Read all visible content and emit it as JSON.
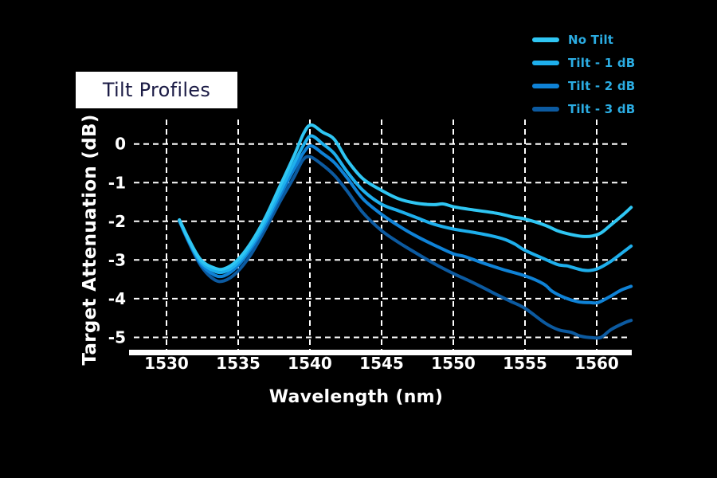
{
  "title_badge": {
    "label": "Tilt Profiles",
    "text_color": "#1b1b45",
    "bg_color": "#ffffff"
  },
  "axes": {
    "x_label": "Wavelength (nm)",
    "y_label": "Target Attenuation (dB)",
    "x_tick_labels": [
      "1530",
      "1535",
      "1540",
      "1545",
      "1550",
      "1555",
      "1560"
    ],
    "y_tick_labels": [
      "0",
      "-1",
      "-2",
      "-3",
      "-4",
      "-5"
    ]
  },
  "colors": {
    "background": "#000000",
    "grid": "#ffffff",
    "axis_bar": "#ffffff",
    "axis_text": "#ffffff",
    "legend_text": "#2bace2"
  },
  "chart_data": {
    "type": "line",
    "title": "Tilt Profiles",
    "xlabel": "Wavelength (nm)",
    "ylabel": "Target Attenuation (dB)",
    "xlim": [
      1527.4,
      1562.4
    ],
    "ylim": [
      -5.35,
      0.65
    ],
    "x_tick_values": [
      1530,
      1535,
      1540,
      1545,
      1550,
      1555,
      1560
    ],
    "y_tick_values": [
      0,
      -1,
      -2,
      -3,
      -4,
      -5
    ],
    "grid": true,
    "grid_style": "dashed",
    "legend_position": "top-right",
    "series": [
      {
        "name": "No Tilt",
        "color": "#2fc6f3",
        "points": [
          [
            1530.9,
            -1.96
          ],
          [
            1531.6,
            -2.5
          ],
          [
            1532.4,
            -3.0
          ],
          [
            1533.3,
            -3.2
          ],
          [
            1534.0,
            -3.23
          ],
          [
            1534.9,
            -3.02
          ],
          [
            1535.9,
            -2.55
          ],
          [
            1536.9,
            -1.9
          ],
          [
            1537.9,
            -1.1
          ],
          [
            1538.9,
            -0.3
          ],
          [
            1539.6,
            0.3
          ],
          [
            1540.1,
            0.49
          ],
          [
            1540.9,
            0.3
          ],
          [
            1541.7,
            0.12
          ],
          [
            1542.6,
            -0.42
          ],
          [
            1543.7,
            -0.9
          ],
          [
            1545.0,
            -1.2
          ],
          [
            1546.2,
            -1.42
          ],
          [
            1547.4,
            -1.53
          ],
          [
            1548.6,
            -1.57
          ],
          [
            1549.3,
            -1.55
          ],
          [
            1550.0,
            -1.62
          ],
          [
            1551.3,
            -1.7
          ],
          [
            1553.0,
            -1.79
          ],
          [
            1554.2,
            -1.89
          ],
          [
            1555.0,
            -1.94
          ],
          [
            1556.4,
            -2.1
          ],
          [
            1557.3,
            -2.25
          ],
          [
            1558.2,
            -2.34
          ],
          [
            1559.0,
            -2.39
          ],
          [
            1559.7,
            -2.38
          ],
          [
            1560.3,
            -2.3
          ],
          [
            1561.0,
            -2.09
          ],
          [
            1561.9,
            -1.81
          ],
          [
            1562.4,
            -1.64
          ]
        ]
      },
      {
        "name": "Tilt - 1 dB",
        "color": "#1eafec",
        "points": [
          [
            1530.9,
            -1.97
          ],
          [
            1531.6,
            -2.53
          ],
          [
            1532.4,
            -3.05
          ],
          [
            1533.3,
            -3.28
          ],
          [
            1534.0,
            -3.31
          ],
          [
            1534.9,
            -3.1
          ],
          [
            1535.9,
            -2.63
          ],
          [
            1536.9,
            -2.0
          ],
          [
            1537.9,
            -1.25
          ],
          [
            1538.9,
            -0.5
          ],
          [
            1539.6,
            0.0
          ],
          [
            1540.1,
            0.21
          ],
          [
            1540.9,
            0.0
          ],
          [
            1541.7,
            -0.25
          ],
          [
            1542.6,
            -0.72
          ],
          [
            1543.7,
            -1.2
          ],
          [
            1545.0,
            -1.56
          ],
          [
            1546.2,
            -1.73
          ],
          [
            1547.4,
            -1.9
          ],
          [
            1548.7,
            -2.08
          ],
          [
            1550.0,
            -2.2
          ],
          [
            1551.3,
            -2.28
          ],
          [
            1552.6,
            -2.37
          ],
          [
            1553.6,
            -2.47
          ],
          [
            1554.3,
            -2.59
          ],
          [
            1555.0,
            -2.75
          ],
          [
            1556.4,
            -2.98
          ],
          [
            1557.3,
            -3.12
          ],
          [
            1557.9,
            -3.15
          ],
          [
            1558.3,
            -3.19
          ],
          [
            1559.0,
            -3.26
          ],
          [
            1559.5,
            -3.27
          ],
          [
            1560.1,
            -3.22
          ],
          [
            1561.0,
            -3.03
          ],
          [
            1561.9,
            -2.78
          ],
          [
            1562.4,
            -2.64
          ]
        ]
      },
      {
        "name": "Tilt - 2 dB",
        "color": "#0f82d6",
        "points": [
          [
            1530.9,
            -1.98
          ],
          [
            1531.6,
            -2.55
          ],
          [
            1532.4,
            -3.1
          ],
          [
            1533.3,
            -3.38
          ],
          [
            1534.0,
            -3.41
          ],
          [
            1534.9,
            -3.18
          ],
          [
            1535.9,
            -2.7
          ],
          [
            1536.9,
            -2.08
          ],
          [
            1537.9,
            -1.35
          ],
          [
            1538.9,
            -0.65
          ],
          [
            1539.6,
            -0.2
          ],
          [
            1540.1,
            -0.05
          ],
          [
            1540.9,
            -0.25
          ],
          [
            1541.7,
            -0.48
          ],
          [
            1542.6,
            -0.88
          ],
          [
            1543.7,
            -1.42
          ],
          [
            1545.0,
            -1.82
          ],
          [
            1546.2,
            -2.12
          ],
          [
            1547.4,
            -2.38
          ],
          [
            1548.7,
            -2.62
          ],
          [
            1550.0,
            -2.84
          ],
          [
            1550.8,
            -2.91
          ],
          [
            1552.0,
            -3.07
          ],
          [
            1553.5,
            -3.25
          ],
          [
            1555.0,
            -3.41
          ],
          [
            1556.3,
            -3.62
          ],
          [
            1556.9,
            -3.81
          ],
          [
            1557.8,
            -3.98
          ],
          [
            1558.7,
            -4.08
          ],
          [
            1559.5,
            -4.1
          ],
          [
            1560.1,
            -4.1
          ],
          [
            1560.9,
            -3.95
          ],
          [
            1561.7,
            -3.78
          ],
          [
            1562.4,
            -3.68
          ]
        ]
      },
      {
        "name": "Tilt - 3 dB",
        "color": "#0c5aa0",
        "points": [
          [
            1530.9,
            -2.0
          ],
          [
            1531.6,
            -2.58
          ],
          [
            1532.4,
            -3.15
          ],
          [
            1533.3,
            -3.5
          ],
          [
            1534.0,
            -3.54
          ],
          [
            1534.9,
            -3.32
          ],
          [
            1535.9,
            -2.85
          ],
          [
            1536.9,
            -2.2
          ],
          [
            1537.9,
            -1.5
          ],
          [
            1538.9,
            -0.85
          ],
          [
            1539.5,
            -0.42
          ],
          [
            1540.0,
            -0.33
          ],
          [
            1540.8,
            -0.52
          ],
          [
            1541.7,
            -0.81
          ],
          [
            1542.6,
            -1.22
          ],
          [
            1543.7,
            -1.78
          ],
          [
            1545.0,
            -2.24
          ],
          [
            1546.2,
            -2.55
          ],
          [
            1547.4,
            -2.82
          ],
          [
            1548.7,
            -3.1
          ],
          [
            1550.0,
            -3.35
          ],
          [
            1551.0,
            -3.52
          ],
          [
            1552.0,
            -3.7
          ],
          [
            1553.0,
            -3.89
          ],
          [
            1554.0,
            -4.07
          ],
          [
            1555.0,
            -4.25
          ],
          [
            1556.4,
            -4.63
          ],
          [
            1557.3,
            -4.8
          ],
          [
            1558.2,
            -4.87
          ],
          [
            1558.9,
            -4.97
          ],
          [
            1559.7,
            -5.01
          ],
          [
            1560.3,
            -5.0
          ],
          [
            1561.0,
            -4.8
          ],
          [
            1561.9,
            -4.63
          ],
          [
            1562.4,
            -4.56
          ]
        ]
      }
    ]
  }
}
